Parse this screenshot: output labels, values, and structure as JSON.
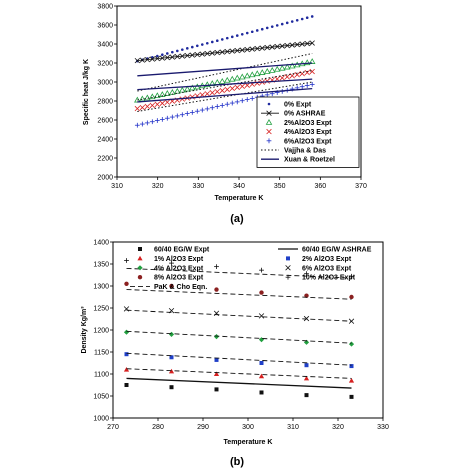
{
  "chart_data": [
    {
      "type": "scatter",
      "panel_label": "(a)",
      "xlabel": "Temperature K",
      "ylabel": "Specific heat J/kg K",
      "xlim": [
        310,
        370
      ],
      "ylim": [
        2000,
        3800
      ],
      "xticks": [
        "310",
        "320",
        "330",
        "340",
        "350",
        "360",
        "370"
      ],
      "yticks": [
        "2000",
        "2200",
        "2400",
        "2600",
        "2800",
        "3000",
        "3200",
        "3400",
        "3600",
        "3800"
      ],
      "grid": false,
      "legend_position": "lower-right",
      "series": [
        {
          "name": "0% Expt",
          "marker": "dot",
          "color": "#1f2a9e",
          "x0": 315,
          "x1": 358,
          "y0": 3220,
          "y1": 3690,
          "n": 36
        },
        {
          "name": "0% ASHRAE",
          "marker": "xbar",
          "color": "#111111",
          "x0": 315,
          "x1": 358,
          "y0": 3225,
          "y1": 3410,
          "n": 36
        },
        {
          "name": "2%Al2O3 Expt",
          "marker": "tri",
          "color": "#22a040",
          "x0": 315,
          "x1": 358,
          "y0": 2810,
          "y1": 3215,
          "n": 36
        },
        {
          "name": "4%Al2O3 Expt",
          "marker": "x",
          "color": "#d62020",
          "x0": 315,
          "x1": 358,
          "y0": 2720,
          "y1": 3110,
          "n": 36
        },
        {
          "name": "6%Al2O3 Expt",
          "marker": "plus",
          "color": "#2030c8",
          "x0": 315,
          "x1": 358,
          "y0": 2545,
          "y1": 2975,
          "n": 36
        },
        {
          "name": "Vajjha & Das",
          "marker": "dotted",
          "color": "#111111",
          "lines": [
            [
              315,
              2905,
              358,
              3300
            ],
            [
              315,
              2810,
              358,
              3120
            ],
            [
              315,
              2690,
              358,
              3000
            ]
          ]
        },
        {
          "name": "Xuan & Roetzel",
          "marker": "solid",
          "color": "#1a1a6e",
          "lines": [
            [
              315,
              3065,
              358,
              3200
            ],
            [
              315,
              2920,
              358,
              3030
            ],
            [
              315,
              2790,
              358,
              2930
            ]
          ]
        }
      ]
    },
    {
      "type": "scatter",
      "panel_label": "(b)",
      "xlabel": "Temperature K",
      "ylabel": "Density Kg/m³",
      "xlim": [
        270,
        330
      ],
      "ylim": [
        1000,
        1400
      ],
      "xticks": [
        "270",
        "280",
        "290",
        "300",
        "310",
        "320",
        "330"
      ],
      "yticks": [
        "1000",
        "1050",
        "1100",
        "1150",
        "1200",
        "1250",
        "1300",
        "1350",
        "1400"
      ],
      "grid": false,
      "legend_position": "top",
      "x": [
        273,
        283,
        293,
        303,
        313,
        323
      ],
      "series": [
        {
          "name": "60/40 EG/W Expt",
          "marker": "square",
          "color": "#111111",
          "values": [
            1075,
            1070,
            1065,
            1058,
            1052,
            1048
          ]
        },
        {
          "name": "60/40 EG/W ASHRAE",
          "marker": "solid",
          "color": "#111111",
          "line": [
            273,
            1090,
            323,
            1068
          ]
        },
        {
          "name": "1% Al2O3 Expt",
          "marker": "tri",
          "color": "#d62020",
          "values": [
            1110,
            1106,
            1100,
            1095,
            1090,
            1085
          ]
        },
        {
          "name": "2% Al2O3 Expt",
          "marker": "square",
          "color": "#2040c8",
          "values": [
            1145,
            1138,
            1132,
            1125,
            1120,
            1118
          ]
        },
        {
          "name": "4% Al2O3 Expt",
          "marker": "diamond",
          "color": "#22a040",
          "values": [
            1195,
            1190,
            1185,
            1178,
            1172,
            1168
          ]
        },
        {
          "name": "6% Al2O3 Expt",
          "marker": "x",
          "color": "#111111",
          "values": [
            1248,
            1244,
            1238,
            1232,
            1226,
            1220
          ]
        },
        {
          "name": "8% Al2O3 Expt",
          "marker": "circle",
          "color": "#8b2020",
          "values": [
            1305,
            1300,
            1292,
            1285,
            1278,
            1275
          ]
        },
        {
          "name": "10% Al2O3 Expt",
          "marker": "plus",
          "color": "#111111",
          "values": [
            1358,
            1352,
            1344,
            1336,
            1328,
            1322
          ]
        },
        {
          "name": "PaK & Cho Eqn.",
          "marker": "dashed",
          "color": "#111111",
          "lines": [
            [
              273,
              1112,
              323,
              1090
            ],
            [
              273,
              1147,
              323,
              1120
            ],
            [
              273,
              1197,
              323,
              1170
            ],
            [
              273,
              1245,
              323,
              1220
            ],
            [
              273,
              1292,
              323,
              1270
            ],
            [
              273,
              1340,
              323,
              1318
            ]
          ]
        }
      ]
    }
  ]
}
